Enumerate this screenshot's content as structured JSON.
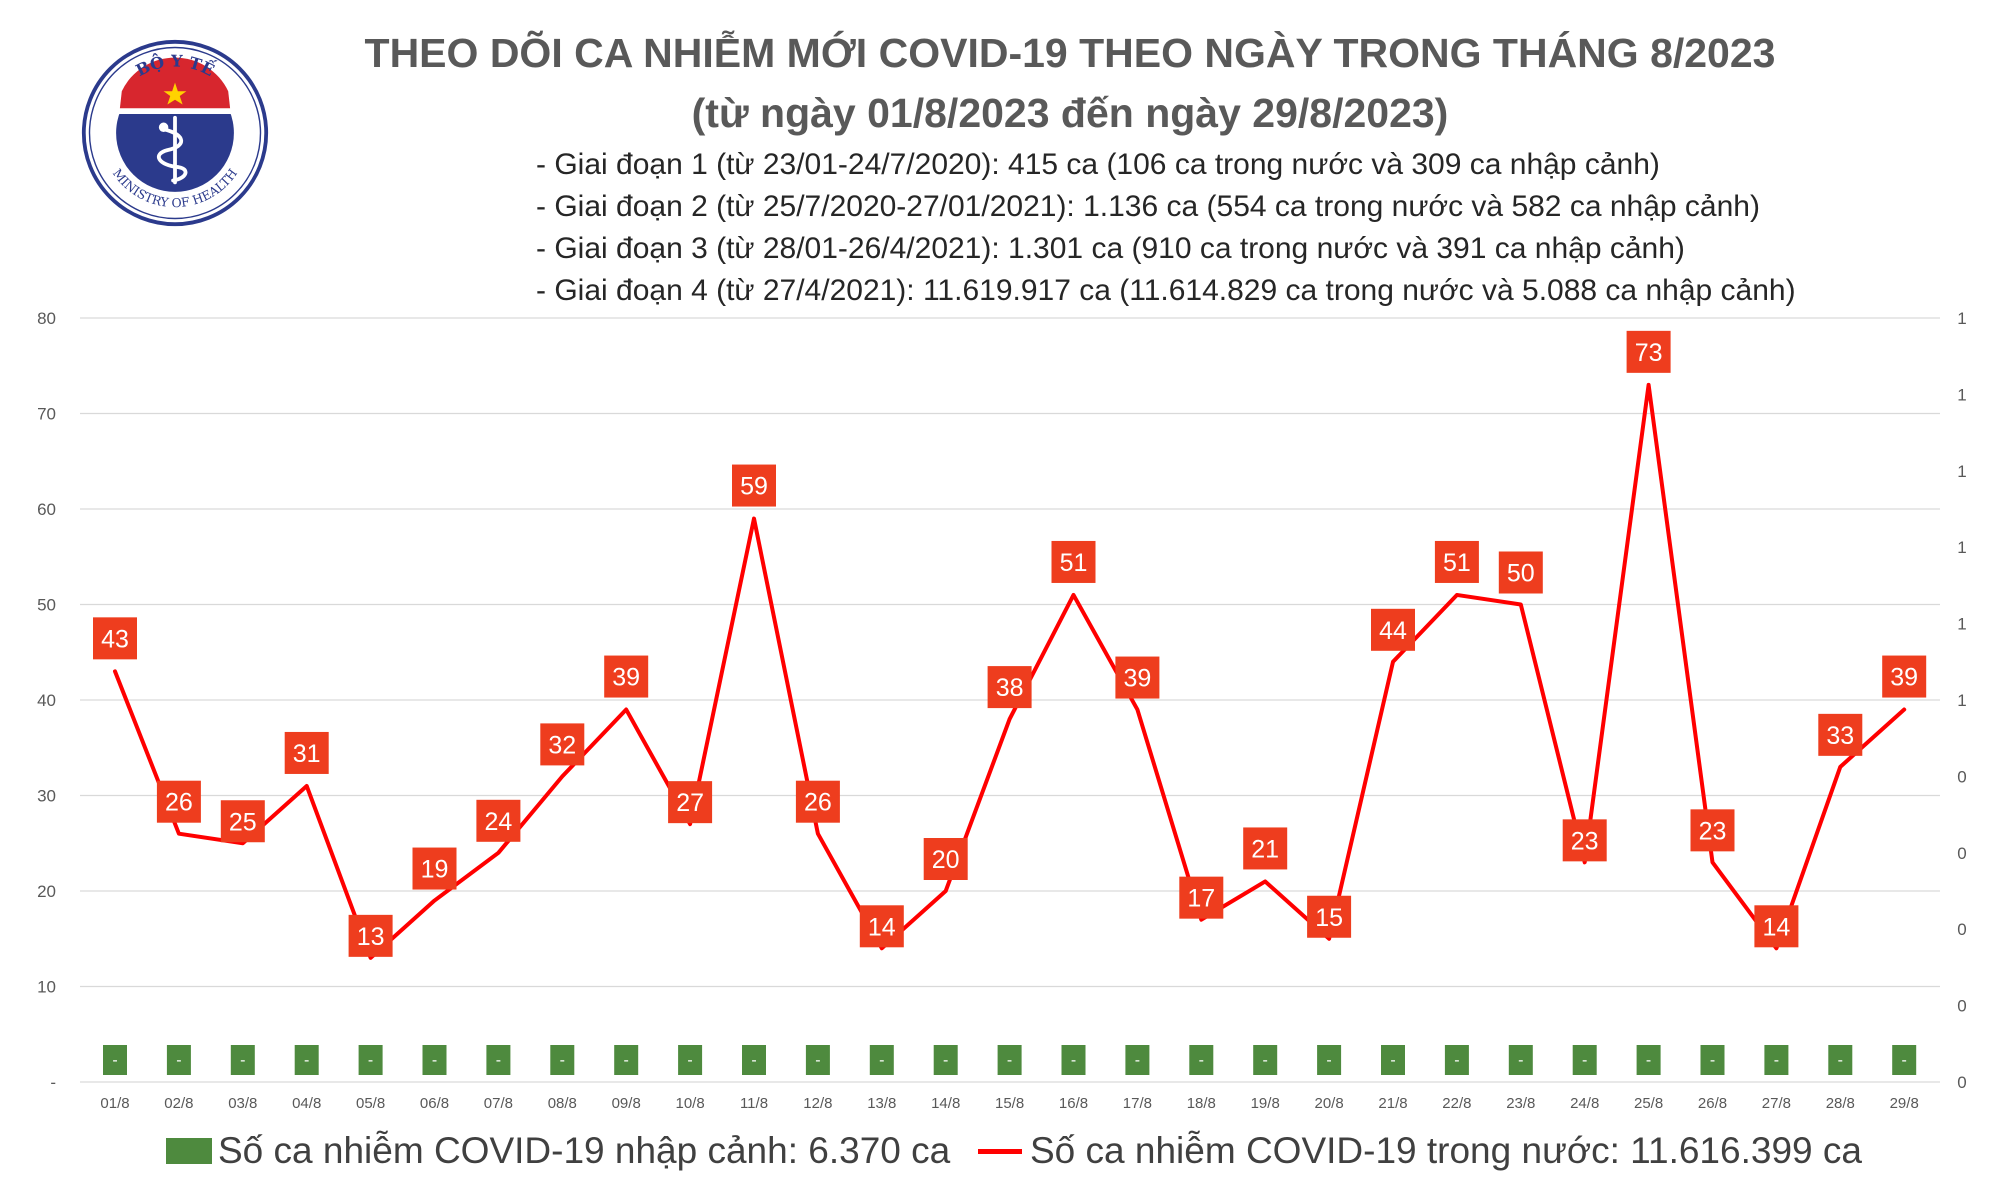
{
  "header": {
    "title_line1": "THEO DÕI CA NHIỄM MỚI COVID-19 THEO NGÀY TRONG THÁNG 8/2023",
    "title_line2": "(từ ngày 01/8/2023 đến ngày 29/8/2023)",
    "notes": [
      "- Giai đoạn 1 (từ 23/01-24/7/2020): 415 ca (106 ca trong nước và 309 ca nhập cảnh)",
      "- Giai đoạn 2 (từ 25/7/2020-27/01/2021): 1.136 ca (554 ca trong nước và 582 ca nhập cảnh)",
      "- Giai đoạn 3 (từ 28/01-26/4/2021): 1.301 ca (910 ca trong nước và 391 ca nhập cảnh)",
      "- Giai đoạn 4 (từ 27/4/2021): 11.619.917 ca (11.614.829 ca trong nước và 5.088 ca nhập cảnh)"
    ]
  },
  "logo": {
    "top_text": "BỘ Y TẾ",
    "bottom_text": "MINISTRY OF HEALTH",
    "colors": {
      "ring": "#2b3a8c",
      "fill": "#2b3a8c",
      "band": "#d7262e",
      "star": "#ffd200"
    }
  },
  "chart_data": {
    "type": "line",
    "categories": [
      "01/8",
      "02/8",
      "03/8",
      "04/8",
      "05/8",
      "06/8",
      "07/8",
      "08/8",
      "09/8",
      "10/8",
      "11/8",
      "12/8",
      "13/8",
      "14/8",
      "15/8",
      "16/8",
      "17/8",
      "18/8",
      "19/8",
      "20/8",
      "21/8",
      "22/8",
      "23/8",
      "24/8",
      "25/8",
      "26/8",
      "27/8",
      "28/8",
      "29/8"
    ],
    "series": [
      {
        "name": "Số ca nhiễm COVID-19 trong nước: 11.616.399 ca",
        "kind": "line",
        "color": "#ff0000",
        "values": [
          43,
          26,
          25,
          31,
          13,
          19,
          24,
          32,
          39,
          27,
          59,
          26,
          14,
          20,
          38,
          51,
          39,
          17,
          21,
          15,
          44,
          51,
          50,
          23,
          73,
          23,
          14,
          33,
          39
        ],
        "labels": [
          "43",
          "26",
          "25",
          "31",
          "13",
          "19",
          "24",
          "32",
          "39",
          "27",
          "59",
          "26",
          "14",
          "20",
          "38",
          "51",
          "39",
          "17",
          "21",
          "15",
          "44",
          "51",
          "50",
          "23",
          "73",
          "23",
          "14",
          "33",
          "39"
        ]
      },
      {
        "name": "Số ca nhiễm COVID-19 nhập cảnh: 6.370 ca",
        "kind": "bar",
        "color": "#4e8a3e",
        "values": [
          0,
          0,
          0,
          0,
          0,
          0,
          0,
          0,
          0,
          0,
          0,
          0,
          0,
          0,
          0,
          0,
          0,
          0,
          0,
          0,
          0,
          0,
          0,
          0,
          0,
          0,
          0,
          0,
          0
        ],
        "labels": [
          "-",
          "-",
          "-",
          "-",
          "-",
          "-",
          "-",
          "-",
          "-",
          "-",
          "-",
          "-",
          "-",
          "-",
          "-",
          "-",
          "-",
          "-",
          "-",
          "-",
          "-",
          "-",
          "-",
          "-",
          "-",
          "-",
          "-",
          "-",
          "-"
        ]
      }
    ],
    "y_left": {
      "min": 0,
      "max": 80,
      "ticks": [
        "-",
        "10",
        "20",
        "30",
        "40",
        "50",
        "60",
        "70",
        "80"
      ]
    },
    "y_right": {
      "ticks": [
        "0",
        "0",
        "0",
        "0",
        "0",
        "1",
        "1",
        "1",
        "1",
        "1",
        "1"
      ]
    },
    "grid": true,
    "legend_position": "bottom"
  }
}
